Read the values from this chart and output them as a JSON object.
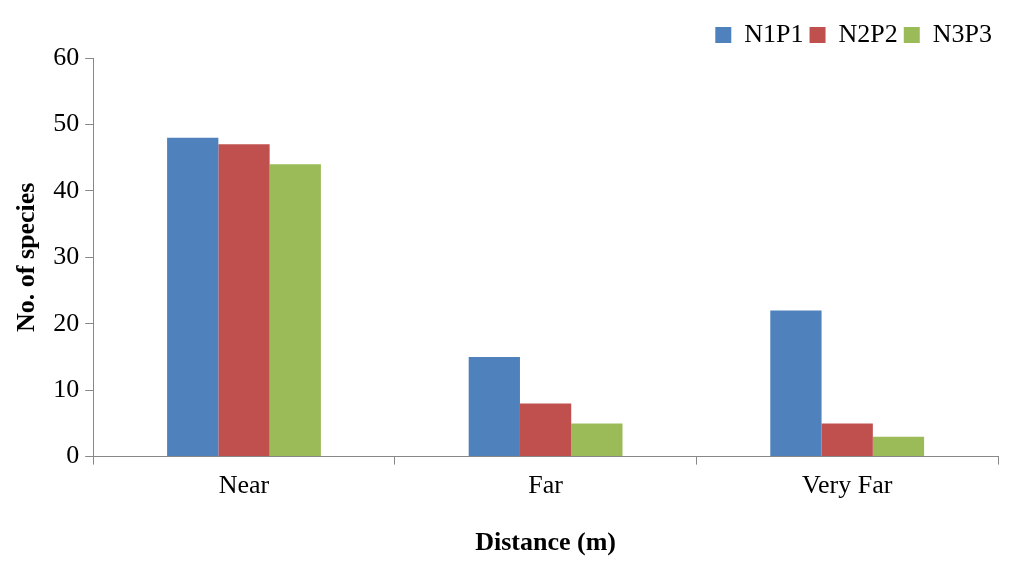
{
  "chart_data": {
    "type": "bar",
    "xlabel": "Distance (m)",
    "ylabel": "No. of species",
    "categories": [
      "Near",
      "Far",
      "Very Far"
    ],
    "series": [
      {
        "name": "N1P1",
        "color": "#4f81bd",
        "values": [
          48,
          15,
          22
        ]
      },
      {
        "name": "N2P2",
        "color": "#c0504d",
        "values": [
          47,
          8,
          5
        ]
      },
      {
        "name": "N3P3",
        "color": "#9bbb59",
        "values": [
          44,
          5,
          3
        ]
      }
    ],
    "ylim": [
      0,
      60
    ],
    "yticks": [
      0,
      10,
      20,
      30,
      40,
      50,
      60
    ],
    "legend": "top right"
  }
}
